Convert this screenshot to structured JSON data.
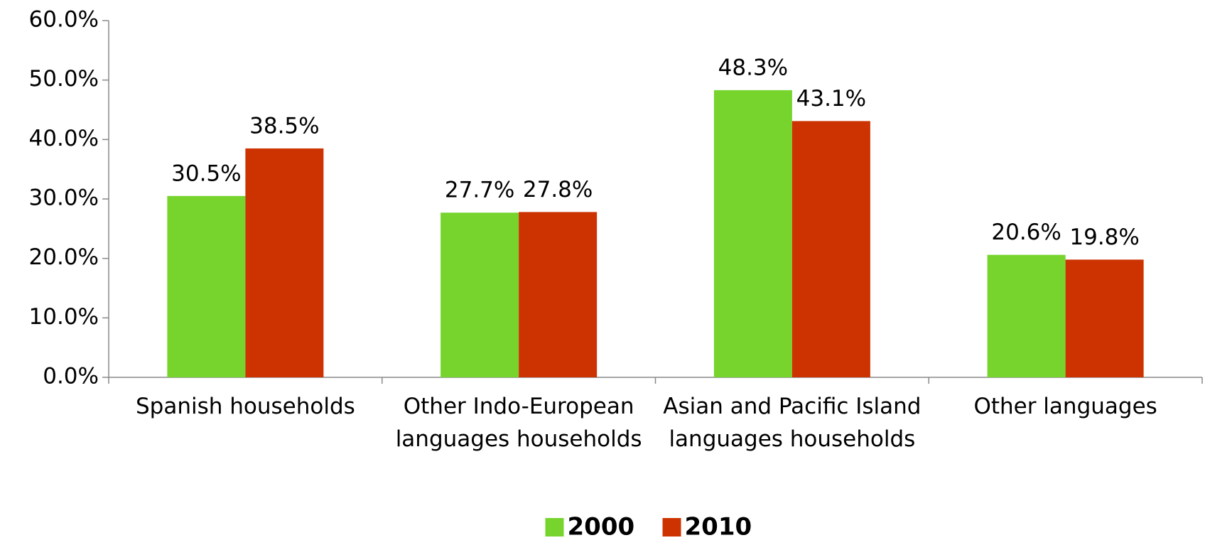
{
  "chart_data": {
    "type": "bar",
    "categories": [
      "Spanish households",
      "Other Indo-European languages households",
      "Asian and Pacific Island languages households",
      "Other languages"
    ],
    "series": [
      {
        "name": "2000",
        "color": "#76d42d",
        "values": [
          30.5,
          27.7,
          48.3,
          20.6
        ],
        "value_labels": [
          "30.5%",
          "27.7%",
          "48.3%",
          "20.6%"
        ]
      },
      {
        "name": "2010",
        "color": "#cc3300",
        "values": [
          38.5,
          27.8,
          43.1,
          19.8
        ],
        "value_labels": [
          "38.5%",
          "27.8%",
          "43.1%",
          "19.8%"
        ]
      }
    ],
    "ylim": [
      0,
      60
    ],
    "yticks": [
      {
        "value": 0,
        "label": "0.0%"
      },
      {
        "value": 10,
        "label": "10.0%"
      },
      {
        "value": 20,
        "label": "20.0%"
      },
      {
        "value": 30,
        "label": "30.0%"
      },
      {
        "value": 40,
        "label": "40.0%"
      },
      {
        "value": 50,
        "label": "50.0%"
      },
      {
        "value": 60,
        "label": "60.0%"
      }
    ],
    "legend": "bottom"
  }
}
